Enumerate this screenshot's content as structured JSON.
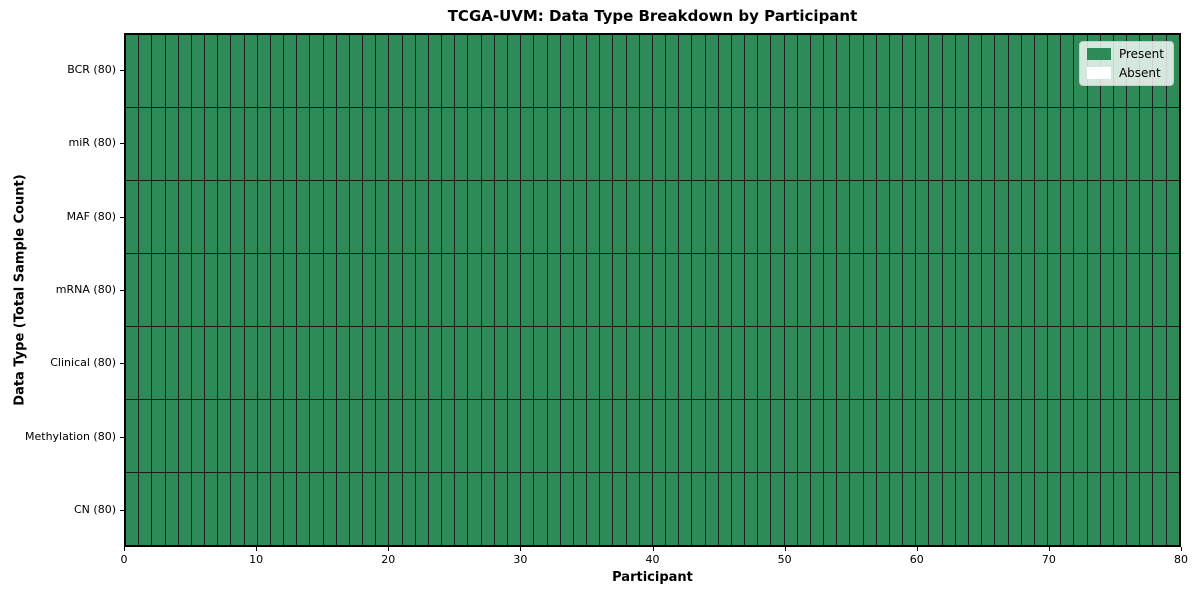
{
  "chart_data": {
    "type": "heatmap",
    "title": "TCGA-UVM: Data Type Breakdown by Participant",
    "xlabel": "Participant",
    "ylabel": "Data Type (Total Sample Count)",
    "n_participants": 80,
    "x_range": [
      0,
      80
    ],
    "x_ticks": [
      0,
      10,
      20,
      30,
      40,
      50,
      60,
      70,
      80
    ],
    "grid": true,
    "rows": [
      {
        "label": "BCR (80)",
        "data_type": "BCR",
        "total_samples": 80,
        "present": 80,
        "absent": 0
      },
      {
        "label": "miR (80)",
        "data_type": "miR",
        "total_samples": 80,
        "present": 80,
        "absent": 0
      },
      {
        "label": "MAF (80)",
        "data_type": "MAF",
        "total_samples": 80,
        "present": 80,
        "absent": 0
      },
      {
        "label": "mRNA (80)",
        "data_type": "mRNA",
        "total_samples": 80,
        "present": 80,
        "absent": 0
      },
      {
        "label": "Clinical (80)",
        "data_type": "Clinical",
        "total_samples": 80,
        "present": 80,
        "absent": 0
      },
      {
        "label": "Methylation (80)",
        "data_type": "Methylation",
        "total_samples": 80,
        "present": 80,
        "absent": 0
      },
      {
        "label": "CN (80)",
        "data_type": "CN",
        "total_samples": 80,
        "present": 80,
        "absent": 0
      }
    ],
    "all_cells_present": true,
    "legend": {
      "position": "upper right",
      "entries": [
        {
          "label": "Present",
          "color": "#2e8b57"
        },
        {
          "label": "Absent",
          "color": "#ffffff"
        }
      ]
    },
    "colors": {
      "present": "#2e8b57",
      "absent": "#ffffff",
      "cell_border": "#1f1f1f",
      "spine": "#000000",
      "figure_background": "#ffffff"
    }
  }
}
